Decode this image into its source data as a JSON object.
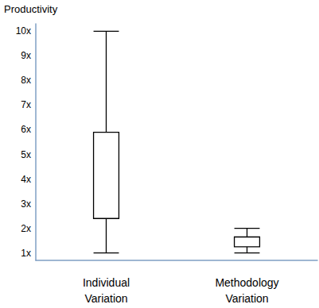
{
  "chart_data": {
    "type": "boxplot",
    "ylabel": "Productivity",
    "categories": [
      "Individual Variation",
      "Methodology Variation"
    ],
    "boxes": [
      {
        "low": 1,
        "q1": 2.4,
        "q3": 5.9,
        "high": 10
      },
      {
        "low": 1,
        "q1": 1.25,
        "q3": 1.65,
        "high": 2
      }
    ],
    "color": "#000000",
    "ylim": [
      0.7,
      10.3
    ],
    "yticks": [
      {
        "value": 1,
        "label": "1x"
      },
      {
        "value": 2,
        "label": "2x"
      },
      {
        "value": 3,
        "label": "3x"
      },
      {
        "value": 4,
        "label": "4x"
      },
      {
        "value": 5,
        "label": "5x"
      },
      {
        "value": 6,
        "label": "6x"
      },
      {
        "value": 7,
        "label": "7x"
      },
      {
        "value": 8,
        "label": "8x"
      },
      {
        "value": 9,
        "label": "9x"
      },
      {
        "value": 10,
        "label": "10x"
      }
    ],
    "grid": false
  }
}
